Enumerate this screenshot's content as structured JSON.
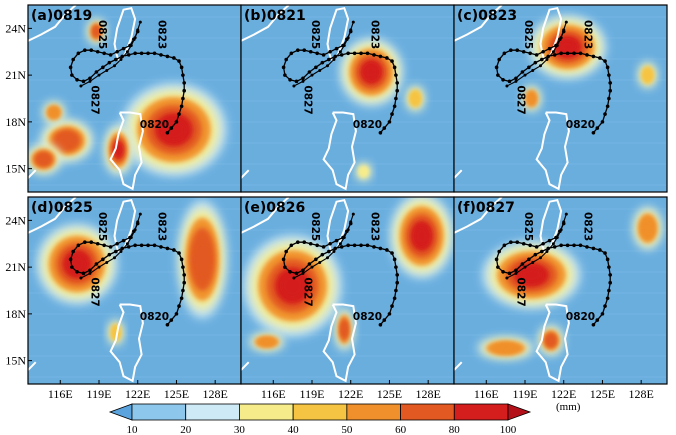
{
  "panels": [
    {
      "id": "a",
      "title": "(a)0819"
    },
    {
      "id": "b",
      "title": "(b)0821"
    },
    {
      "id": "c",
      "title": "(c)0823"
    },
    {
      "id": "d",
      "title": "(d)0825"
    },
    {
      "id": "e",
      "title": "(e)0826"
    },
    {
      "id": "f",
      "title": "(f)0827"
    }
  ],
  "lat_labels": [
    "24N",
    "21N",
    "18N",
    "15N"
  ],
  "lon_labels": [
    "116E",
    "119E",
    "122E",
    "125E",
    "128E"
  ],
  "track_labels": [
    "0825",
    "0823",
    "0827",
    "0820"
  ],
  "colorbar": {
    "unit": "(mm)",
    "levels": [
      "10",
      "20",
      "30",
      "40",
      "50",
      "60",
      "80",
      "100"
    ],
    "colors": [
      "#5aa3dc",
      "#8ec7ec",
      "#cfeaf7",
      "#f7ec8a",
      "#f6c443",
      "#f0902c",
      "#e25a22",
      "#d41e1e",
      "#b3101a"
    ]
  },
  "colors": {
    "background_rain": "#6aaede",
    "coast": "#ffffff",
    "track": "#000000"
  },
  "rain_cells": [
    [
      {
        "lon": 124.8,
        "lat": 17.5,
        "rx": 3.0,
        "ry": 2.2,
        "v": 85
      },
      {
        "lon": 120.5,
        "lat": 16.2,
        "rx": 0.8,
        "ry": 1.2,
        "v": 85
      },
      {
        "lon": 116.5,
        "lat": 16.8,
        "rx": 1.5,
        "ry": 1.0,
        "v": 70
      },
      {
        "lon": 114.7,
        "lat": 15.6,
        "rx": 1.0,
        "ry": 0.7,
        "v": 70
      },
      {
        "lon": 118.8,
        "lat": 23.8,
        "rx": 0.5,
        "ry": 0.6,
        "v": 60
      },
      {
        "lon": 115.5,
        "lat": 18.6,
        "rx": 0.6,
        "ry": 0.5,
        "v": 55
      }
    ],
    [
      {
        "lon": 123.6,
        "lat": 21.2,
        "rx": 1.8,
        "ry": 1.6,
        "v": 85
      },
      {
        "lon": 127.0,
        "lat": 19.5,
        "rx": 0.5,
        "ry": 0.6,
        "v": 40
      },
      {
        "lon": 123.0,
        "lat": 14.8,
        "rx": 0.4,
        "ry": 0.4,
        "v": 35
      }
    ],
    [
      {
        "lon": 122.3,
        "lat": 22.8,
        "rx": 2.2,
        "ry": 1.5,
        "v": 90
      },
      {
        "lon": 119.5,
        "lat": 19.5,
        "rx": 0.5,
        "ry": 0.6,
        "v": 50
      },
      {
        "lon": 128.5,
        "lat": 21.0,
        "rx": 0.5,
        "ry": 0.6,
        "v": 40
      }
    ],
    [
      {
        "lon": 117.3,
        "lat": 21.2,
        "rx": 2.3,
        "ry": 1.9,
        "v": 90
      },
      {
        "lon": 127.0,
        "lat": 21.5,
        "rx": 1.4,
        "ry": 2.8,
        "v": 75
      },
      {
        "lon": 120.3,
        "lat": 16.8,
        "rx": 0.4,
        "ry": 0.6,
        "v": 45
      }
    ],
    [
      {
        "lon": 117.5,
        "lat": 19.8,
        "rx": 2.8,
        "ry": 2.4,
        "v": 85
      },
      {
        "lon": 127.5,
        "lat": 23.0,
        "rx": 1.8,
        "ry": 2.0,
        "v": 80
      },
      {
        "lon": 121.5,
        "lat": 17.0,
        "rx": 0.5,
        "ry": 1.0,
        "v": 70
      },
      {
        "lon": 115.5,
        "lat": 16.2,
        "rx": 1.0,
        "ry": 0.4,
        "v": 55
      }
    ],
    [
      {
        "lon": 119.5,
        "lat": 20.5,
        "rx": 2.8,
        "ry": 1.6,
        "v": 90
      },
      {
        "lon": 128.5,
        "lat": 23.5,
        "rx": 0.8,
        "ry": 1.0,
        "v": 55
      },
      {
        "lon": 121.0,
        "lat": 16.3,
        "rx": 0.7,
        "ry": 0.7,
        "v": 60
      },
      {
        "lon": 117.5,
        "lat": 15.8,
        "rx": 1.6,
        "ry": 0.5,
        "v": 55
      }
    ]
  ],
  "track": [
    [
      124.3,
      17.3
    ],
    [
      124.6,
      17.6
    ],
    [
      125.0,
      18.0
    ],
    [
      125.2,
      18.5
    ],
    [
      125.4,
      19.0
    ],
    [
      125.5,
      19.5
    ],
    [
      125.6,
      20.0
    ],
    [
      125.6,
      20.5
    ],
    [
      125.5,
      21.0
    ],
    [
      125.4,
      21.5
    ],
    [
      125.2,
      21.9
    ],
    [
      124.8,
      22.1
    ],
    [
      124.3,
      22.2
    ],
    [
      123.8,
      22.3
    ],
    [
      123.3,
      22.4
    ],
    [
      122.8,
      22.4
    ],
    [
      122.3,
      22.4
    ],
    [
      121.8,
      22.4
    ],
    [
      121.3,
      22.3
    ],
    [
      120.8,
      22.2
    ],
    [
      120.3,
      22.0
    ],
    [
      119.8,
      21.8
    ],
    [
      119.3,
      21.5
    ],
    [
      118.8,
      21.2
    ],
    [
      118.3,
      20.8
    ],
    [
      117.8,
      20.6
    ],
    [
      117.3,
      20.7
    ],
    [
      116.9,
      21.0
    ],
    [
      116.8,
      21.5
    ],
    [
      117.0,
      22.0
    ],
    [
      117.4,
      22.4
    ],
    [
      117.9,
      22.6
    ],
    [
      118.4,
      22.6
    ],
    [
      118.9,
      22.5
    ],
    [
      119.4,
      22.4
    ],
    [
      119.9,
      22.3
    ],
    [
      120.4,
      22.5
    ],
    [
      120.9,
      22.7
    ],
    [
      121.4,
      22.9
    ],
    [
      121.7,
      23.3
    ],
    [
      122.0,
      23.8
    ]
  ],
  "track2": [
    [
      117.6,
      20.3
    ],
    [
      118.3,
      20.6
    ],
    [
      119.0,
      21.0
    ],
    [
      119.6,
      21.3
    ],
    [
      120.2,
      21.6
    ],
    [
      120.7,
      22.0
    ],
    [
      121.2,
      22.5
    ],
    [
      121.5,
      22.9
    ],
    [
      121.8,
      23.4
    ],
    [
      122.0,
      23.9
    ],
    [
      122.2,
      24.4
    ]
  ]
}
